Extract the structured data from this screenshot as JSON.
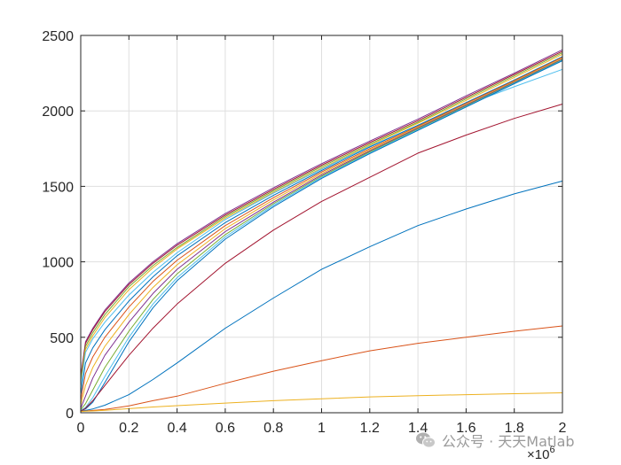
{
  "chart_data": {
    "type": "line",
    "x_axis": {
      "lim": [
        0,
        2000000
      ],
      "ticks": [
        0,
        200000,
        400000,
        600000,
        800000,
        1000000,
        1200000,
        1400000,
        1600000,
        1800000,
        2000000
      ],
      "tick_labels": [
        "0",
        "0.2",
        "0.4",
        "0.6",
        "0.8",
        "1",
        "1.2",
        "1.4",
        "1.6",
        "1.8",
        "2"
      ],
      "exponent_label": "×10",
      "exponent_power": "6"
    },
    "y_axis": {
      "lim": [
        0,
        2500
      ],
      "ticks": [
        0,
        500,
        1000,
        1500,
        2000,
        2500
      ],
      "tick_labels": [
        "0",
        "500",
        "1000",
        "1500",
        "2000",
        "2500"
      ]
    },
    "grid": true,
    "box": true,
    "x": [
      0,
      20000,
      50000,
      100000,
      200000,
      300000,
      400000,
      600000,
      800000,
      1000000,
      1200000,
      1400000,
      1600000,
      1800000,
      2000000
    ],
    "series": [
      {
        "color": "#7E2F8E",
        "values": [
          240,
          470,
          560,
          680,
          860,
          1000,
          1120,
          1320,
          1490,
          1650,
          1800,
          1945,
          2100,
          2250,
          2405
        ]
      },
      {
        "color": "#A2142F",
        "values": [
          230,
          460,
          550,
          670,
          850,
          990,
          1110,
          1310,
          1480,
          1640,
          1790,
          1935,
          2090,
          2242,
          2395
        ]
      },
      {
        "color": "#77AC30",
        "values": [
          210,
          440,
          530,
          650,
          835,
          975,
          1095,
          1300,
          1470,
          1630,
          1780,
          1925,
          2080,
          2232,
          2385
        ]
      },
      {
        "color": "#EDB120",
        "values": [
          190,
          420,
          510,
          630,
          815,
          960,
          1085,
          1290,
          1460,
          1620,
          1772,
          1918,
          2070,
          2222,
          2375
        ]
      },
      {
        "color": "#4DBEEE",
        "values": [
          170,
          400,
          490,
          600,
          780,
          930,
          1060,
          1280,
          1455,
          1615,
          1765,
          1905,
          2040,
          2160,
          2275
        ]
      },
      {
        "color": "#0072BD",
        "values": [
          120,
          330,
          430,
          550,
          740,
          900,
          1040,
          1260,
          1440,
          1605,
          1760,
          1905,
          2055,
          2205,
          2360
        ]
      },
      {
        "color": "#D95319",
        "values": [
          80,
          260,
          370,
          500,
          700,
          870,
          1010,
          1240,
          1425,
          1595,
          1750,
          1898,
          2050,
          2200,
          2355
        ]
      },
      {
        "color": "#EDB120",
        "values": [
          50,
          180,
          300,
          440,
          650,
          830,
          980,
          1220,
          1410,
          1585,
          1742,
          1892,
          2043,
          2194,
          2348
        ]
      },
      {
        "color": "#7E2F8E",
        "values": [
          30,
          110,
          230,
          380,
          600,
          790,
          950,
          1200,
          1395,
          1575,
          1735,
          1886,
          2038,
          2190,
          2343
        ]
      },
      {
        "color": "#77AC30",
        "values": [
          20,
          60,
          150,
          300,
          540,
          750,
          920,
          1180,
          1385,
          1567,
          1728,
          1880,
          2033,
          2186,
          2339
        ]
      },
      {
        "color": "#4DBEEE",
        "values": [
          15,
          35,
          100,
          240,
          500,
          720,
          895,
          1165,
          1375,
          1560,
          1722,
          1875,
          2029,
          2183,
          2336
        ]
      },
      {
        "color": "#0072BD",
        "values": [
          12,
          25,
          70,
          200,
          470,
          695,
          875,
          1150,
          1365,
          1553,
          1717,
          1871,
          2026,
          2180,
          2333
        ]
      },
      {
        "color": "#A2142F",
        "values": [
          10,
          30,
          80,
          180,
          380,
          560,
          720,
          990,
          1210,
          1400,
          1560,
          1720,
          1840,
          1950,
          2045
        ]
      },
      {
        "color": "#0072BD",
        "values": [
          10,
          15,
          25,
          50,
          120,
          220,
          330,
          560,
          760,
          950,
          1100,
          1240,
          1350,
          1450,
          1535
        ]
      },
      {
        "color": "#D95319",
        "values": [
          10,
          12,
          15,
          22,
          45,
          80,
          110,
          195,
          275,
          345,
          410,
          460,
          500,
          540,
          575
        ]
      },
      {
        "color": "#EDB120",
        "values": [
          8,
          10,
          12,
          16,
          27,
          38,
          47,
          64,
          80,
          93,
          105,
          113,
          120,
          126,
          132
        ]
      }
    ]
  },
  "watermark": {
    "icon": "wechat-icon",
    "text": "公众号 · 天天Matlab"
  }
}
